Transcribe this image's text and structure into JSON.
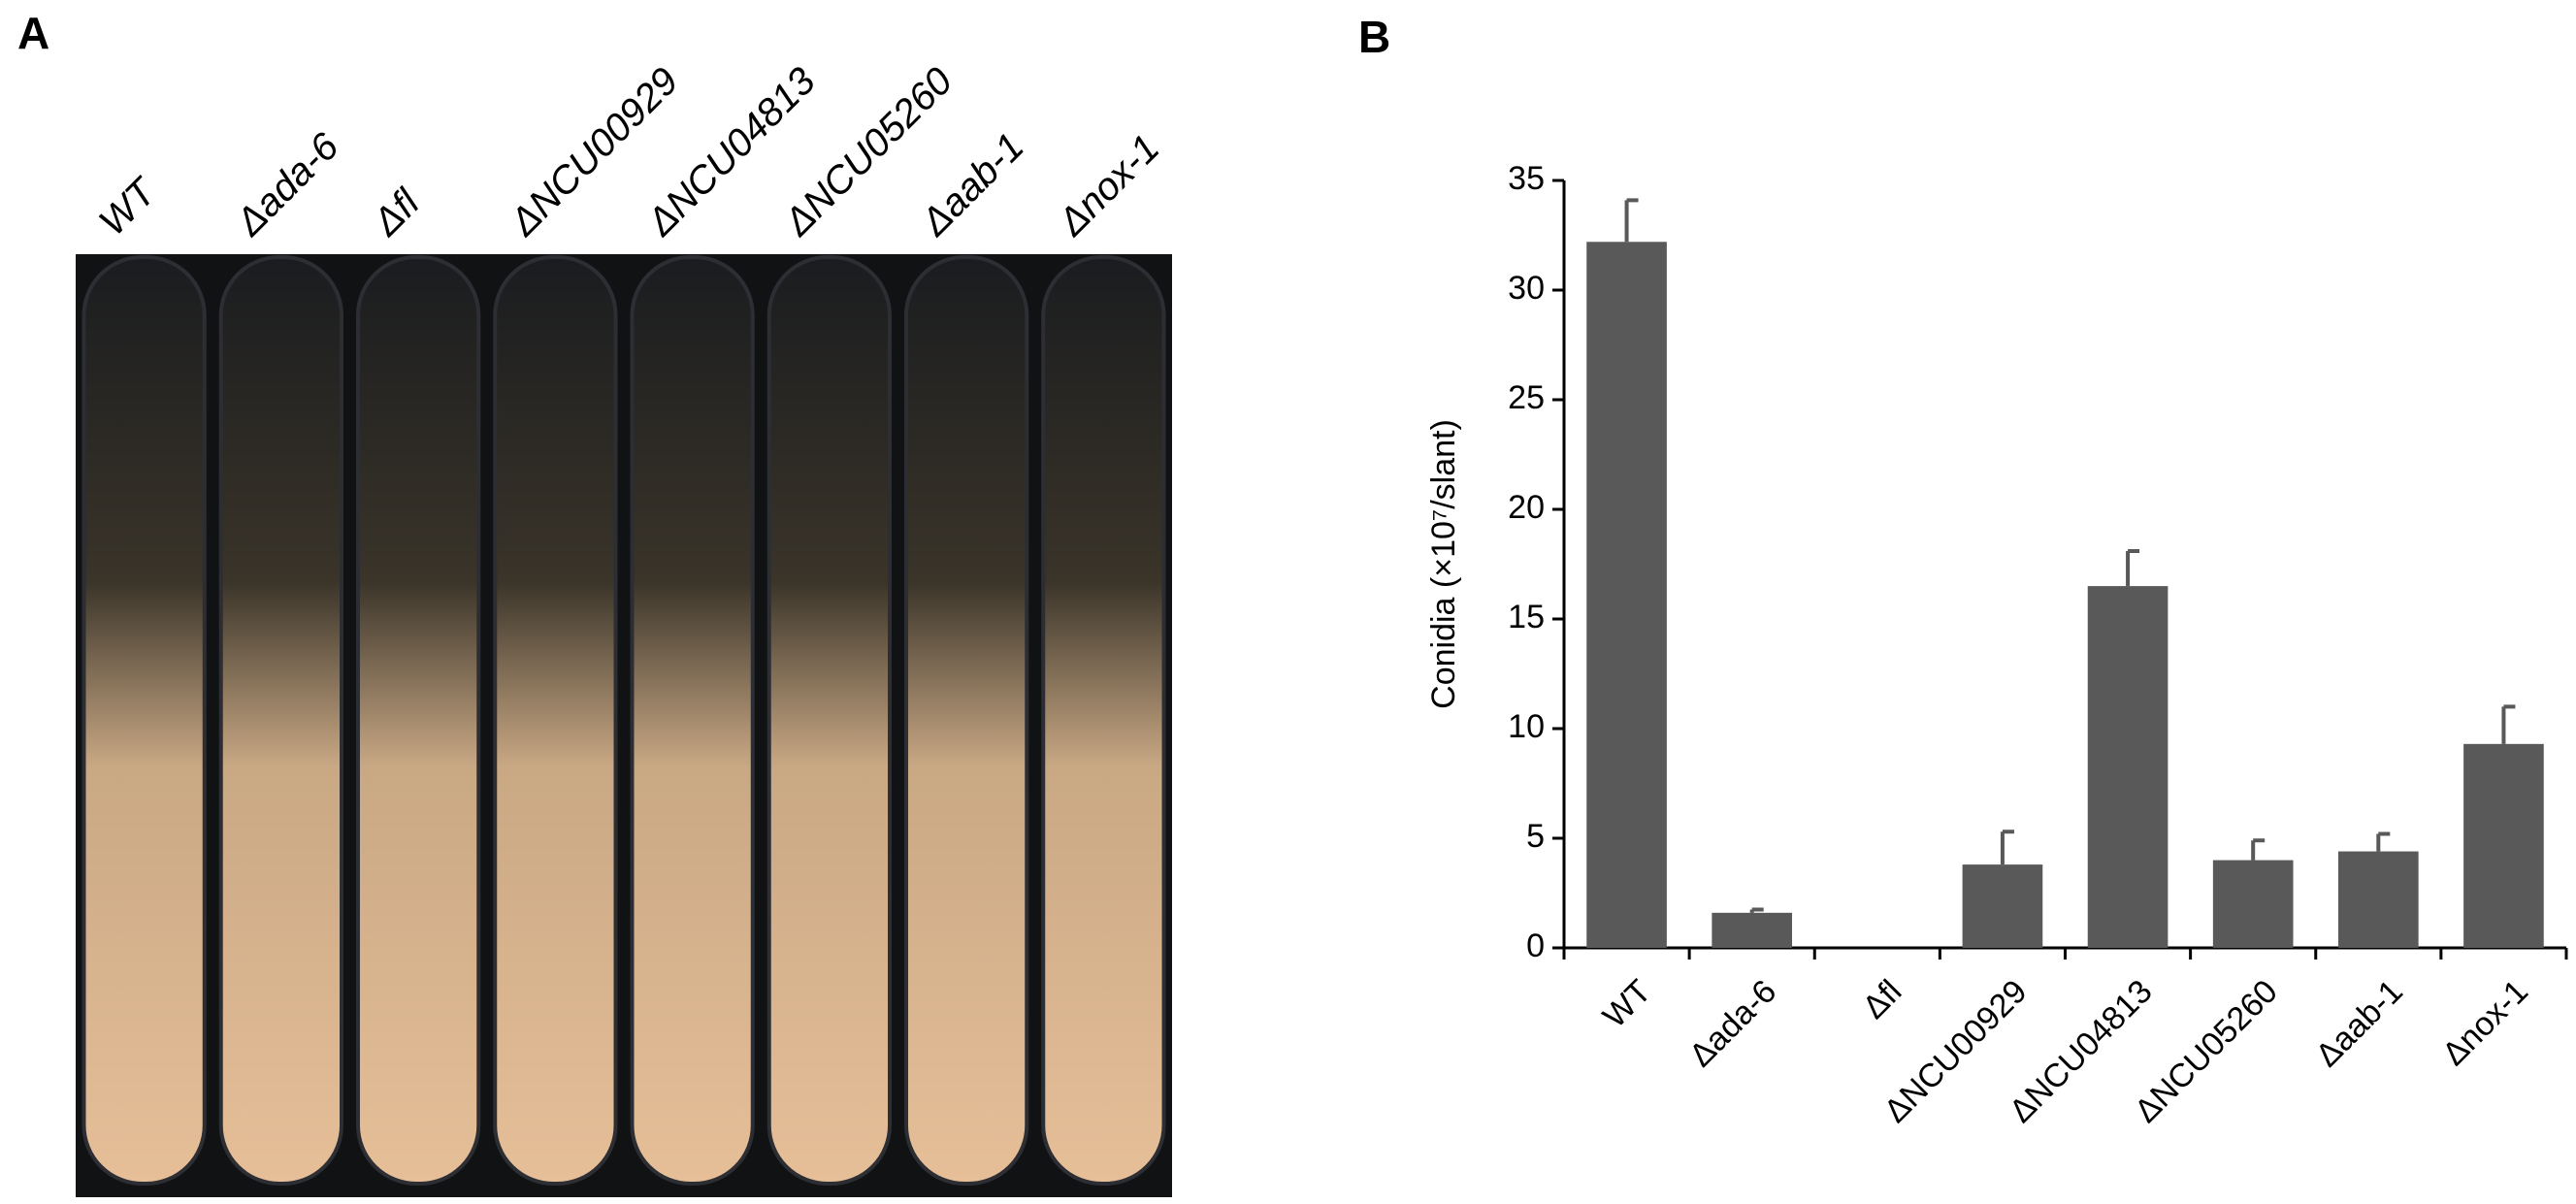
{
  "panel_a": {
    "label": "A",
    "tube_labels": [
      "WT",
      "Δada-6",
      "Δfl",
      "ΔNCU00929",
      "ΔNCU04813",
      "ΔNCU05260",
      "Δaab-1",
      "Δnox-1"
    ]
  },
  "panel_b": {
    "label": "B"
  },
  "chart_data": {
    "type": "bar",
    "y_label": "Conidia (×10⁷/slant)",
    "categories": [
      "WT",
      "Δada-6",
      "Δfl",
      "ΔNCU00929",
      "ΔNCU04813",
      "ΔNCU05260",
      "Δaab-1",
      "Δnox-1"
    ],
    "values": [
      32.2,
      1.6,
      0,
      3.8,
      16.5,
      4.0,
      4.4,
      9.3
    ],
    "errors": [
      1.9,
      0.15,
      0,
      1.5,
      1.6,
      0.9,
      0.8,
      1.7
    ],
    "color": "#595959",
    "ylim": [
      0,
      35
    ],
    "yticks": [
      0,
      5,
      10,
      15,
      20,
      25,
      30,
      35
    ]
  }
}
